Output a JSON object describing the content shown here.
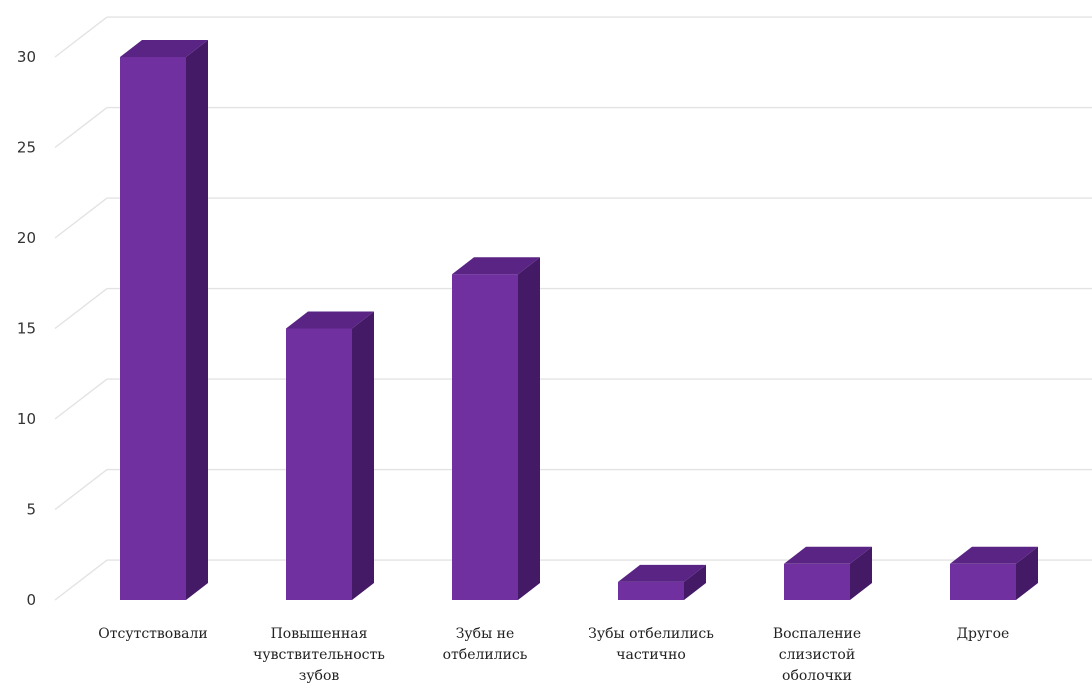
{
  "chart_data": {
    "type": "bar",
    "style": "3d-column",
    "categories": [
      [
        "Отсутствовали"
      ],
      [
        "Повышенная",
        "чувствительность",
        "зубов"
      ],
      [
        "Зубы не",
        "отбелились"
      ],
      [
        "Зубы отбелились",
        "частично"
      ],
      [
        "Воспаление",
        "слизистой",
        "оболочки"
      ],
      [
        "Другое"
      ]
    ],
    "values": [
      30,
      15,
      18,
      1,
      2,
      2
    ],
    "ylim": [
      0,
      30
    ],
    "yticks": [
      "0",
      "5",
      "10",
      "15",
      "20",
      "25",
      "30"
    ],
    "title": "",
    "xlabel": "",
    "ylabel": "",
    "grid": true,
    "legend": "none",
    "colors": {
      "bar_front": "#7030a0",
      "bar_top": "#5a2484",
      "bar_side": "#441a66",
      "grid": "#e3e3e3"
    }
  }
}
